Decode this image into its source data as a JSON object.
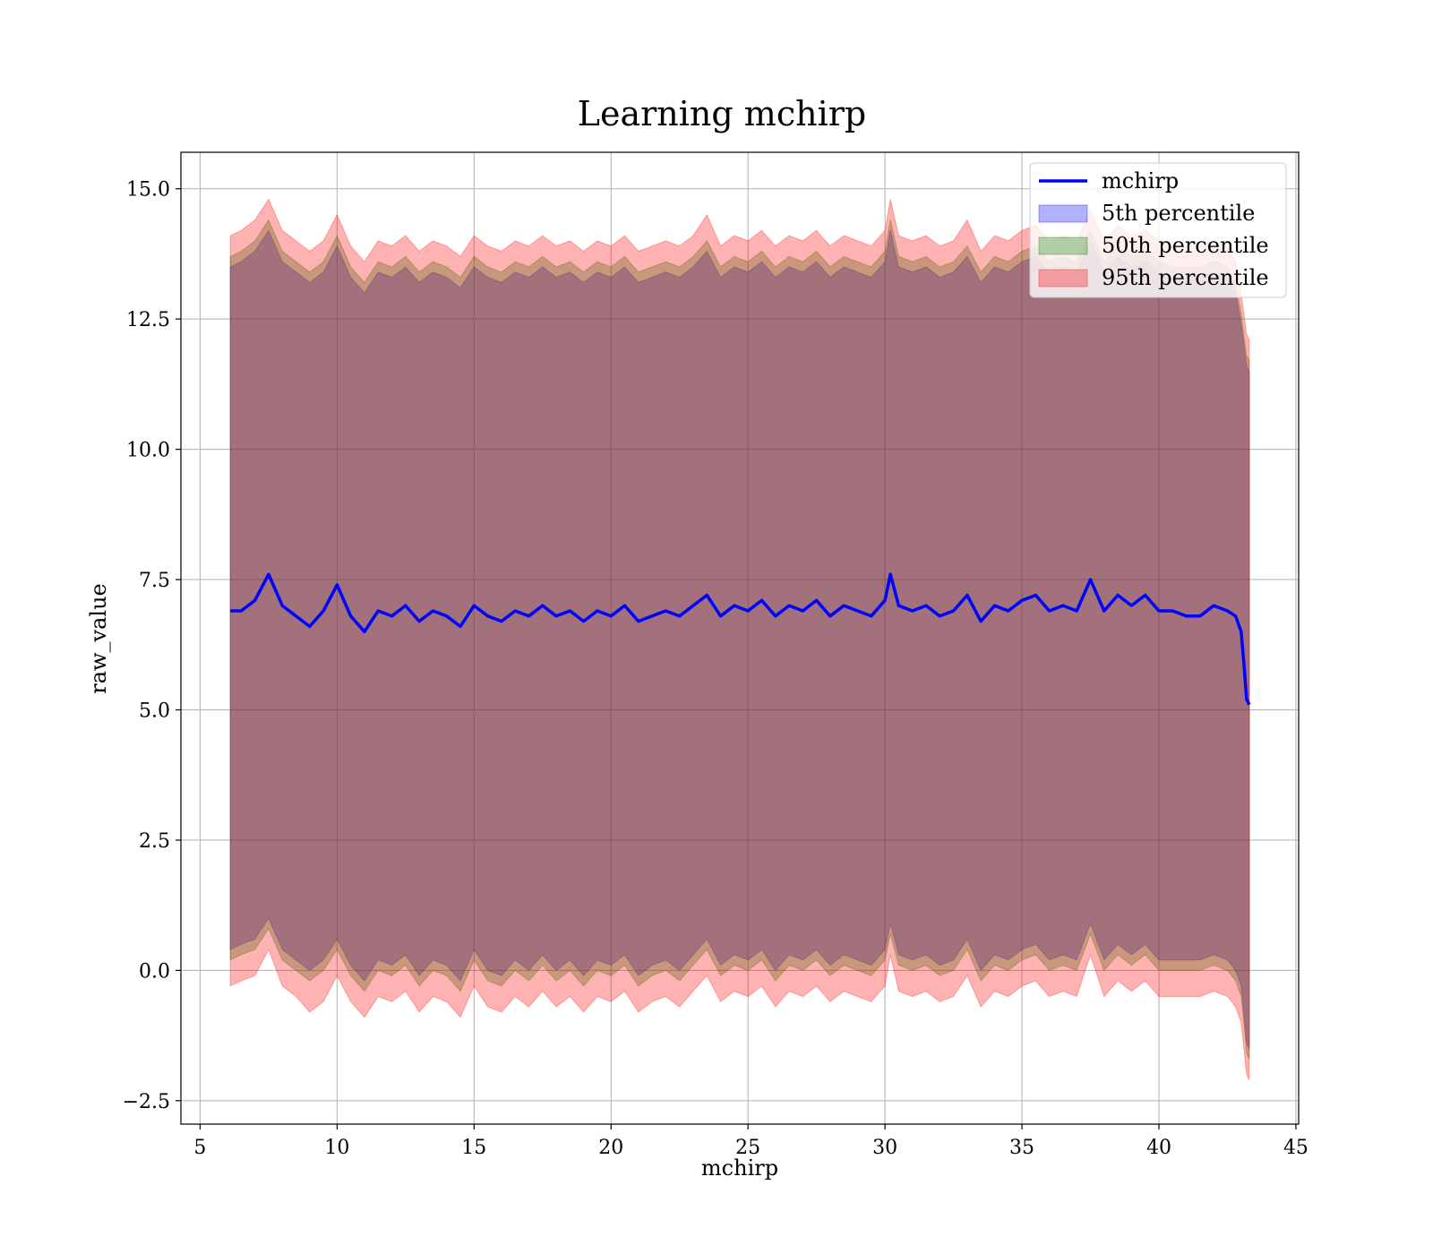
{
  "chart_data": {
    "type": "area",
    "title": "Learning mchirp",
    "xlabel": "mchirp",
    "ylabel": "raw_value",
    "xlim": [
      4.3,
      45.1
    ],
    "ylim": [
      -2.95,
      15.7
    ],
    "xticks": [
      5,
      10,
      15,
      20,
      25,
      30,
      35,
      40,
      45
    ],
    "yticks": [
      -2.5,
      0.0,
      2.5,
      5.0,
      7.5,
      10.0,
      12.5,
      15.0
    ],
    "xtick_labels": [
      "5",
      "10",
      "15",
      "20",
      "25",
      "30",
      "35",
      "40",
      "45"
    ],
    "ytick_labels": [
      "−2.5",
      "0.0",
      "2.5",
      "5.0",
      "7.5",
      "10.0",
      "12.5",
      "15.0"
    ],
    "grid": true,
    "legend_position": "top-right",
    "colors": {
      "line": "#0000ff",
      "band_5th": "#0000ff",
      "band_50th": "#008000",
      "band_95th": "#ff0000"
    },
    "x": [
      6.1,
      6.5,
      7.0,
      7.5,
      8.0,
      8.5,
      9.0,
      9.5,
      10.0,
      10.5,
      11.0,
      11.5,
      12.0,
      12.5,
      13.0,
      13.5,
      14.0,
      14.5,
      15.0,
      15.5,
      16.0,
      16.5,
      17.0,
      17.5,
      18.0,
      18.5,
      19.0,
      19.5,
      20.0,
      20.5,
      21.0,
      21.5,
      22.0,
      22.5,
      23.0,
      23.5,
      24.0,
      24.5,
      25.0,
      25.5,
      26.0,
      26.5,
      27.0,
      27.5,
      28.0,
      28.5,
      29.0,
      29.5,
      30.0,
      30.2,
      30.5,
      31.0,
      31.5,
      32.0,
      32.5,
      33.0,
      33.5,
      34.0,
      34.5,
      35.0,
      35.5,
      36.0,
      36.5,
      37.0,
      37.5,
      38.0,
      38.5,
      39.0,
      39.5,
      40.0,
      40.5,
      41.0,
      41.5,
      42.0,
      42.5,
      42.8,
      43.0,
      43.1,
      43.2,
      43.3
    ],
    "series": [
      {
        "name": "mchirp",
        "kind": "line",
        "values": [
          6.9,
          6.9,
          7.1,
          7.6,
          7.0,
          6.8,
          6.6,
          6.9,
          7.4,
          6.8,
          6.5,
          6.9,
          6.8,
          7.0,
          6.7,
          6.9,
          6.8,
          6.6,
          7.0,
          6.8,
          6.7,
          6.9,
          6.8,
          7.0,
          6.8,
          6.9,
          6.7,
          6.9,
          6.8,
          7.0,
          6.7,
          6.8,
          6.9,
          6.8,
          7.0,
          7.2,
          6.8,
          7.0,
          6.9,
          7.1,
          6.8,
          7.0,
          6.9,
          7.1,
          6.8,
          7.0,
          6.9,
          6.8,
          7.1,
          7.6,
          7.0,
          6.9,
          7.0,
          6.8,
          6.9,
          7.2,
          6.7,
          7.0,
          6.9,
          7.1,
          7.2,
          6.9,
          7.0,
          6.9,
          7.5,
          6.9,
          7.2,
          7.0,
          7.2,
          6.9,
          6.9,
          6.8,
          6.8,
          7.0,
          6.9,
          6.8,
          6.5,
          5.9,
          5.2,
          5.1
        ]
      },
      {
        "name": "5th percentile",
        "kind": "band",
        "lower": [
          0.4,
          0.5,
          0.6,
          1.0,
          0.4,
          0.2,
          0.0,
          0.2,
          0.6,
          0.1,
          -0.2,
          0.2,
          0.1,
          0.3,
          -0.1,
          0.2,
          0.1,
          -0.2,
          0.4,
          0.0,
          -0.1,
          0.2,
          0.0,
          0.3,
          0.0,
          0.2,
          -0.1,
          0.2,
          0.1,
          0.3,
          -0.1,
          0.1,
          0.2,
          0.0,
          0.3,
          0.6,
          0.1,
          0.3,
          0.2,
          0.4,
          0.0,
          0.3,
          0.2,
          0.4,
          0.1,
          0.3,
          0.2,
          0.1,
          0.4,
          0.9,
          0.3,
          0.2,
          0.3,
          0.1,
          0.2,
          0.6,
          0.0,
          0.3,
          0.2,
          0.4,
          0.5,
          0.2,
          0.3,
          0.2,
          0.9,
          0.2,
          0.5,
          0.3,
          0.5,
          0.2,
          0.2,
          0.2,
          0.2,
          0.3,
          0.2,
          0.0,
          -0.3,
          -0.8,
          -1.4,
          -1.5
        ],
        "upper": [
          13.5,
          13.6,
          13.8,
          14.2,
          13.6,
          13.4,
          13.2,
          13.4,
          13.9,
          13.3,
          13.0,
          13.4,
          13.3,
          13.5,
          13.2,
          13.4,
          13.3,
          13.1,
          13.5,
          13.3,
          13.2,
          13.4,
          13.3,
          13.5,
          13.3,
          13.4,
          13.2,
          13.4,
          13.3,
          13.5,
          13.2,
          13.3,
          13.4,
          13.3,
          13.5,
          13.8,
          13.3,
          13.5,
          13.4,
          13.6,
          13.3,
          13.5,
          13.4,
          13.6,
          13.3,
          13.5,
          13.4,
          13.3,
          13.6,
          14.2,
          13.5,
          13.4,
          13.5,
          13.3,
          13.4,
          13.7,
          13.2,
          13.5,
          13.4,
          13.6,
          13.7,
          13.4,
          13.5,
          13.4,
          14.0,
          13.4,
          13.7,
          13.5,
          13.6,
          13.4,
          13.3,
          13.3,
          13.3,
          13.4,
          13.3,
          13.0,
          12.4,
          12.0,
          11.6,
          11.5
        ]
      },
      {
        "name": "50th percentile",
        "kind": "band",
        "lower": [
          0.2,
          0.3,
          0.4,
          0.8,
          0.2,
          0.0,
          -0.2,
          0.0,
          0.4,
          -0.1,
          -0.4,
          0.0,
          -0.1,
          0.1,
          -0.3,
          0.0,
          -0.1,
          -0.4,
          0.2,
          -0.2,
          -0.3,
          0.0,
          -0.2,
          0.1,
          -0.2,
          0.0,
          -0.3,
          0.0,
          -0.1,
          0.1,
          -0.3,
          -0.1,
          0.0,
          -0.2,
          0.1,
          0.4,
          -0.1,
          0.1,
          0.0,
          0.2,
          -0.2,
          0.1,
          0.0,
          0.2,
          -0.1,
          0.1,
          0.0,
          -0.1,
          0.2,
          0.7,
          0.1,
          0.0,
          0.1,
          -0.1,
          0.0,
          0.4,
          -0.2,
          0.1,
          0.0,
          0.2,
          0.3,
          0.0,
          0.1,
          0.0,
          0.7,
          0.0,
          0.3,
          0.1,
          0.3,
          0.0,
          0.0,
          0.0,
          0.0,
          0.1,
          0.0,
          -0.2,
          -0.5,
          -1.0,
          -1.6,
          -1.7
        ],
        "upper": [
          13.7,
          13.8,
          14.0,
          14.4,
          13.8,
          13.6,
          13.4,
          13.6,
          14.1,
          13.5,
          13.2,
          13.6,
          13.5,
          13.7,
          13.4,
          13.6,
          13.5,
          13.3,
          13.7,
          13.5,
          13.4,
          13.6,
          13.5,
          13.7,
          13.5,
          13.6,
          13.4,
          13.6,
          13.5,
          13.7,
          13.4,
          13.5,
          13.6,
          13.5,
          13.7,
          14.0,
          13.5,
          13.7,
          13.6,
          13.8,
          13.5,
          13.7,
          13.6,
          13.8,
          13.5,
          13.7,
          13.6,
          13.5,
          13.8,
          14.4,
          13.7,
          13.6,
          13.7,
          13.5,
          13.6,
          13.9,
          13.4,
          13.7,
          13.6,
          13.8,
          13.9,
          13.6,
          13.7,
          13.6,
          14.2,
          13.6,
          13.9,
          13.7,
          13.8,
          13.6,
          13.5,
          13.5,
          13.5,
          13.6,
          13.5,
          13.2,
          12.6,
          12.2,
          11.8,
          11.7
        ]
      },
      {
        "name": "95th percentile",
        "kind": "band",
        "lower": [
          -0.3,
          -0.2,
          -0.1,
          0.4,
          -0.3,
          -0.5,
          -0.8,
          -0.6,
          -0.1,
          -0.6,
          -0.9,
          -0.5,
          -0.6,
          -0.4,
          -0.8,
          -0.5,
          -0.6,
          -0.9,
          -0.3,
          -0.7,
          -0.8,
          -0.5,
          -0.7,
          -0.4,
          -0.7,
          -0.5,
          -0.8,
          -0.5,
          -0.6,
          -0.4,
          -0.8,
          -0.6,
          -0.5,
          -0.7,
          -0.4,
          -0.1,
          -0.6,
          -0.4,
          -0.5,
          -0.3,
          -0.7,
          -0.4,
          -0.5,
          -0.3,
          -0.6,
          -0.4,
          -0.5,
          -0.6,
          -0.3,
          0.3,
          -0.4,
          -0.5,
          -0.4,
          -0.6,
          -0.5,
          -0.1,
          -0.7,
          -0.4,
          -0.5,
          -0.3,
          -0.2,
          -0.5,
          -0.4,
          -0.5,
          0.3,
          -0.5,
          -0.2,
          -0.4,
          -0.2,
          -0.5,
          -0.5,
          -0.5,
          -0.5,
          -0.4,
          -0.5,
          -0.7,
          -1.0,
          -1.5,
          -2.0,
          -2.1
        ],
        "upper": [
          14.1,
          14.2,
          14.4,
          14.8,
          14.2,
          14.0,
          13.8,
          14.0,
          14.5,
          13.9,
          13.6,
          14.0,
          13.9,
          14.1,
          13.8,
          14.0,
          13.9,
          13.7,
          14.1,
          13.9,
          13.8,
          14.0,
          13.9,
          14.1,
          13.9,
          14.0,
          13.8,
          14.0,
          13.9,
          14.1,
          13.8,
          13.9,
          14.0,
          13.9,
          14.1,
          14.5,
          13.9,
          14.1,
          14.0,
          14.2,
          13.9,
          14.1,
          14.0,
          14.2,
          13.9,
          14.1,
          14.0,
          13.9,
          14.2,
          14.8,
          14.1,
          14.0,
          14.1,
          13.9,
          14.0,
          14.4,
          13.8,
          14.1,
          14.0,
          14.2,
          14.3,
          14.0,
          14.1,
          14.0,
          14.6,
          14.0,
          14.3,
          14.1,
          14.2,
          14.0,
          13.9,
          13.9,
          13.9,
          14.0,
          13.9,
          13.6,
          13.0,
          12.6,
          12.2,
          12.1
        ]
      }
    ]
  }
}
